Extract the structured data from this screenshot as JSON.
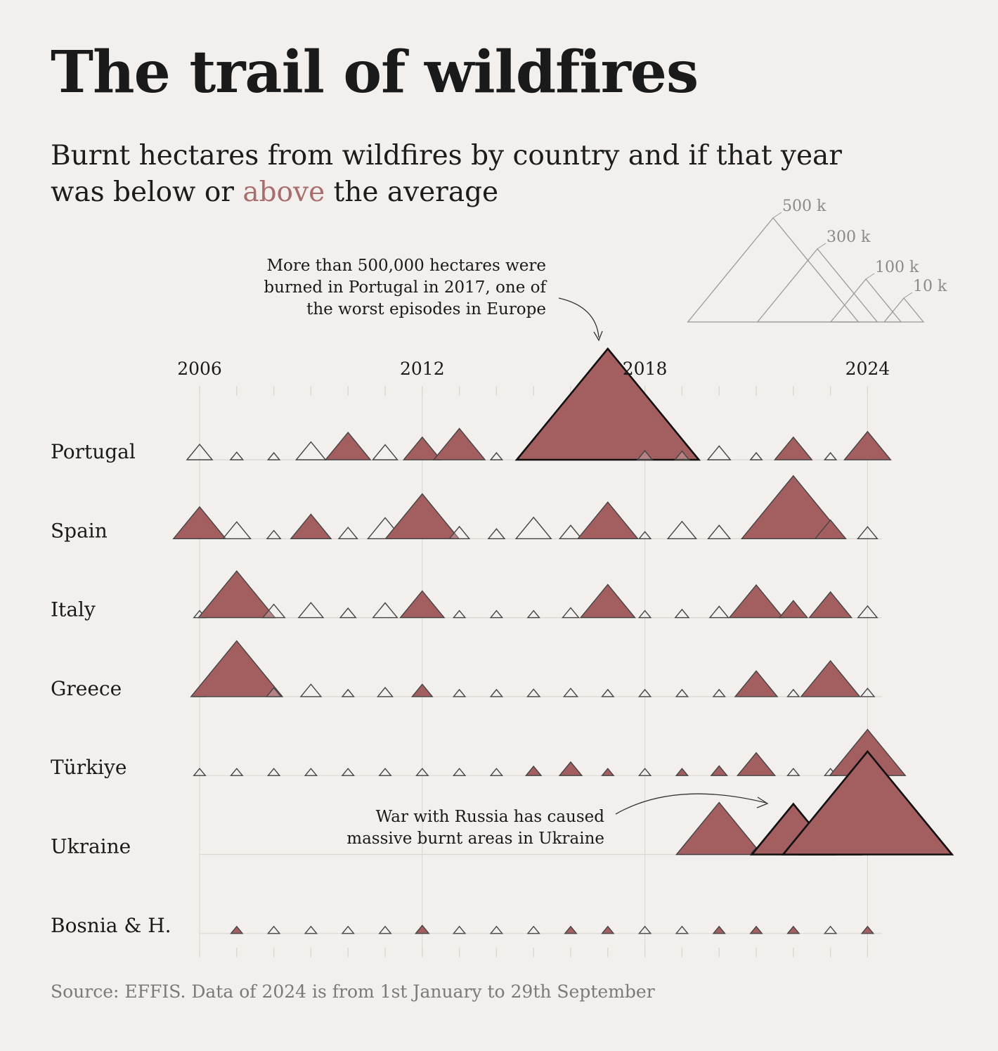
{
  "title": "The trail of wildfires",
  "subtitle": {
    "before": "Burnt hectares from wildfires by country and if that year was below or ",
    "highlight": "above",
    "after": " the average"
  },
  "source": "Source: EFFIS. Data of 2024 is from 1st January to 29th September",
  "colors": {
    "above": "#a35e60",
    "below": "#f2efec",
    "stroke": "#444444",
    "highlight_text": "#a86d6d",
    "grid": "#d9d5d1"
  },
  "legend": {
    "entries": [
      {
        "label": "500 k",
        "value": 500000
      },
      {
        "label": "300 k",
        "value": 300000
      },
      {
        "label": "100 k",
        "value": 100000
      },
      {
        "label": "10 k",
        "value": 10000
      }
    ]
  },
  "annotations": [
    {
      "id": "portugal",
      "lines": [
        "More than 500,000 hectares were",
        "burned in Portugal in 2017, one of",
        "the worst episodes in Europe"
      ]
    },
    {
      "id": "ukraine",
      "lines": [
        "War with Russia has caused",
        "massive burnt areas in Ukraine"
      ]
    }
  ],
  "chart_data": {
    "type": "triangle-area",
    "title": "The trail of wildfires",
    "years": [
      2006,
      2007,
      2008,
      2009,
      2010,
      2011,
      2012,
      2013,
      2014,
      2015,
      2016,
      2017,
      2018,
      2019,
      2020,
      2021,
      2022,
      2023,
      2024
    ],
    "year_labels": [
      "2006",
      "2012",
      "2018",
      "2024"
    ],
    "unit": "hectares burnt",
    "series": [
      {
        "name": "Portugal",
        "values": [
          75000,
          37000,
          17000,
          87000,
          133000,
          73000,
          110000,
          152000,
          19000,
          64000,
          161000,
          540000,
          44000,
          42000,
          67000,
          28000,
          110000,
          34000,
          137000
        ],
        "above": [
          0,
          0,
          0,
          0,
          1,
          0,
          1,
          1,
          0,
          0,
          1,
          1,
          0,
          0,
          0,
          0,
          1,
          0,
          1
        ]
      },
      {
        "name": "Spain",
        "values": [
          155000,
          82000,
          40000,
          119000,
          55000,
          102000,
          218000,
          59000,
          48000,
          104000,
          65000,
          178000,
          25000,
          84000,
          65000,
          84000,
          306000,
          91000,
          58000
        ],
        "above": [
          1,
          0,
          0,
          1,
          0,
          0,
          1,
          0,
          0,
          0,
          0,
          1,
          0,
          0,
          0,
          1,
          1,
          1,
          0
        ]
      },
      {
        "name": "Italy",
        "values": [
          20000,
          227000,
          65000,
          73000,
          46000,
          72000,
          130000,
          29000,
          27000,
          25000,
          48000,
          161000,
          15000,
          40000,
          55000,
          159000,
          83000,
          125000,
          57000
        ],
        "above": [
          0,
          1,
          0,
          0,
          0,
          0,
          1,
          0,
          0,
          0,
          0,
          1,
          0,
          0,
          0,
          1,
          1,
          1,
          0
        ]
      },
      {
        "name": "Greece",
        "values": [
          15000,
          271000,
          43000,
          60000,
          16000,
          44000,
          60000,
          29000,
          26000,
          36000,
          40000,
          20000,
          24000,
          18000,
          17000,
          125000,
          26000,
          174000,
          40000
        ],
        "above": [
          0,
          1,
          0,
          0,
          0,
          0,
          1,
          0,
          0,
          0,
          0,
          0,
          0,
          0,
          0,
          1,
          0,
          1,
          0
        ]
      },
      {
        "name": "Türkiye",
        "values": [
          10000,
          12000,
          29000,
          7000,
          3000,
          10000,
          12000,
          20000,
          6000,
          45000,
          66000,
          33000,
          24000,
          31000,
          47000,
          111000,
          10000,
          24000,
          224000
        ],
        "above": [
          0,
          0,
          0,
          0,
          0,
          0,
          0,
          0,
          0,
          1,
          1,
          1,
          0,
          1,
          1,
          1,
          0,
          0,
          1
        ]
      },
      {
        "name": "Ukraine",
        "values": [
          null,
          null,
          null,
          null,
          null,
          null,
          null,
          null,
          null,
          null,
          null,
          null,
          null,
          null,
          253000,
          2000,
          246000,
          179000,
          501000
        ],
        "above": [
          0,
          0,
          0,
          0,
          0,
          0,
          0,
          0,
          0,
          0,
          0,
          0,
          0,
          0,
          1,
          0,
          1,
          1,
          1
        ]
      },
      {
        "name": "Bosnia & H.",
        "values": [
          null,
          24000,
          7000,
          2000,
          5000,
          17000,
          39000,
          6000,
          5000,
          12000,
          17000,
          31000,
          3000,
          17000,
          33000,
          21000,
          20000,
          6000,
          17000
        ],
        "above": [
          0,
          1,
          0,
          0,
          0,
          0,
          1,
          0,
          0,
          0,
          1,
          1,
          0,
          0,
          1,
          1,
          1,
          0,
          1
        ]
      }
    ],
    "emphasized": [
      {
        "country": "Portugal",
        "year": 2017
      },
      {
        "country": "Ukraine",
        "year": 2022
      },
      {
        "country": "Ukraine",
        "year": 2023
      },
      {
        "country": "Ukraine",
        "year": 2024
      }
    ]
  }
}
